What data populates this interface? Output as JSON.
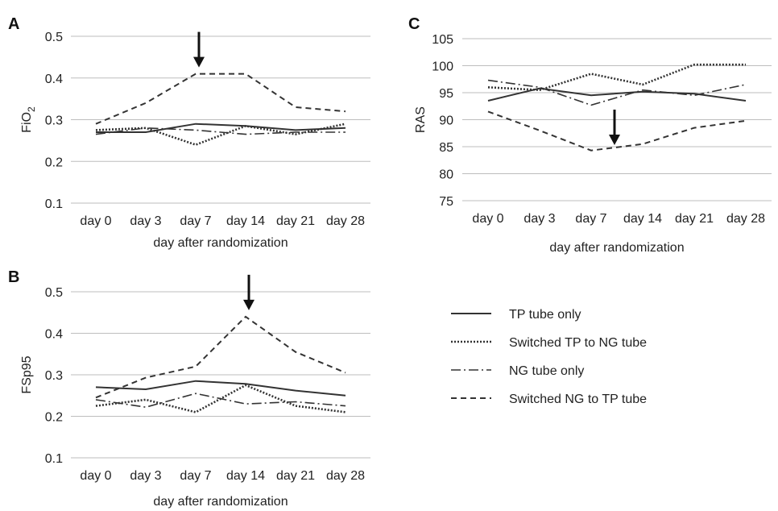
{
  "legend": [
    {
      "name": "TP tube only",
      "style": "solid"
    },
    {
      "name": "Switched TP to NG tube",
      "style": "dotted"
    },
    {
      "name": "NG tube only",
      "style": "dashdot"
    },
    {
      "name": "Switched NG to TP tube",
      "style": "dashed"
    }
  ],
  "chart_data": [
    {
      "panel": "A",
      "type": "line",
      "categories": [
        "day 0",
        "day 3",
        "day 7",
        "day 14",
        "day 21",
        "day 28"
      ],
      "xlabel": "day after randomization",
      "ylabel_main": "FiO",
      "ylabel_sub": "2",
      "ylim": [
        0.1,
        0.5
      ],
      "yticks": [
        "0.1",
        "0.2",
        "0.3",
        "0.4",
        "0.5"
      ],
      "arrow_at": "day 7",
      "series": [
        {
          "name": "TP tube only",
          "style": "solid",
          "values": [
            0.27,
            0.27,
            0.29,
            0.285,
            0.275,
            0.28
          ]
        },
        {
          "name": "Switched TP to NG tube",
          "style": "dotted",
          "values": [
            0.275,
            0.28,
            0.24,
            0.285,
            0.265,
            0.29
          ]
        },
        {
          "name": "NG tube only",
          "style": "dashdot",
          "values": [
            0.265,
            0.28,
            0.275,
            0.265,
            0.27,
            0.27
          ]
        },
        {
          "name": "Switched NG to TP tube",
          "style": "dashed",
          "values": [
            0.29,
            0.34,
            0.41,
            0.41,
            0.33,
            0.32
          ]
        }
      ]
    },
    {
      "panel": "B",
      "type": "line",
      "categories": [
        "day 0",
        "day 3",
        "day 7",
        "day 14",
        "day 21",
        "day 28"
      ],
      "xlabel": "day after randomization",
      "ylabel_main": "FSp95",
      "ylabel_sub": "",
      "ylim": [
        0.1,
        0.5
      ],
      "yticks": [
        "0.1",
        "0.2",
        "0.3",
        "0.4",
        "0.5"
      ],
      "arrow_at": "day 14",
      "series": [
        {
          "name": "TP tube only",
          "style": "solid",
          "values": [
            0.27,
            0.265,
            0.285,
            0.278,
            0.262,
            0.25
          ]
        },
        {
          "name": "Switched TP to NG tube",
          "style": "dotted",
          "values": [
            0.225,
            0.24,
            0.21,
            0.275,
            0.225,
            0.21
          ]
        },
        {
          "name": "NG tube only",
          "style": "dashdot",
          "values": [
            0.24,
            0.222,
            0.255,
            0.23,
            0.235,
            0.225
          ]
        },
        {
          "name": "Switched NG to TP tube",
          "style": "dashed",
          "values": [
            0.245,
            0.293,
            0.32,
            0.44,
            0.355,
            0.305
          ]
        }
      ]
    },
    {
      "panel": "C",
      "type": "line",
      "categories": [
        "day 0",
        "day 3",
        "day 7",
        "day 14",
        "day 21",
        "day 28"
      ],
      "xlabel": "day after randomization",
      "ylabel_main": "RAS",
      "ylabel_sub": "",
      "ylim": [
        75,
        105
      ],
      "yticks": [
        "75",
        "80",
        "85",
        "90",
        "95",
        "100",
        "105"
      ],
      "arrow_at": "day 7",
      "series": [
        {
          "name": "TP tube only",
          "style": "solid",
          "values": [
            93.5,
            95.8,
            94.5,
            95.2,
            94.8,
            93.5
          ]
        },
        {
          "name": "Switched TP to NG tube",
          "style": "dotted",
          "values": [
            96.0,
            95.5,
            98.5,
            96.5,
            100.2,
            100.2
          ]
        },
        {
          "name": "NG tube only",
          "style": "dashdot",
          "values": [
            97.3,
            96.0,
            92.7,
            95.5,
            94.5,
            96.5
          ]
        },
        {
          "name": "Switched NG to TP tube",
          "style": "dashed",
          "values": [
            91.5,
            88.0,
            84.3,
            85.5,
            88.5,
            89.8
          ]
        }
      ]
    }
  ]
}
